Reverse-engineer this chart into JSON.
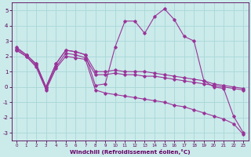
{
  "background_color": "#cbeaea",
  "line_color": "#993399",
  "grid_color": "#a8d8d8",
  "xlabel": "Windchill (Refroidissement éolien,°C)",
  "xlabel_color": "#660066",
  "tick_color": "#550055",
  "xlim": [
    -0.5,
    23.5
  ],
  "ylim": [
    -3.5,
    5.5
  ],
  "yticks": [
    -3,
    -2,
    -1,
    0,
    1,
    2,
    3,
    4,
    5
  ],
  "xticks": [
    0,
    1,
    2,
    3,
    4,
    5,
    6,
    7,
    8,
    9,
    10,
    11,
    12,
    13,
    14,
    15,
    16,
    17,
    18,
    19,
    20,
    21,
    22,
    23
  ],
  "series": [
    {
      "x": [
        0,
        1,
        2,
        3,
        4,
        5,
        6,
        7,
        8,
        9,
        10,
        11,
        12,
        13,
        14,
        15,
        16,
        17,
        18,
        19,
        20,
        21,
        22,
        23
      ],
      "y": [
        2.6,
        2.1,
        1.5,
        0.0,
        1.5,
        2.4,
        2.3,
        2.1,
        0.1,
        0.2,
        2.6,
        4.3,
        4.3,
        3.5,
        4.6,
        5.1,
        4.4,
        3.3,
        3.0,
        0.4,
        0.0,
        -0.1,
        -1.9,
        -3.0
      ]
    },
    {
      "x": [
        0,
        1,
        2,
        3,
        4,
        5,
        6,
        7,
        8,
        9,
        10,
        11,
        12,
        13,
        14,
        15,
        16,
        17,
        18,
        19,
        20,
        21,
        22,
        23
      ],
      "y": [
        2.5,
        2.1,
        1.5,
        0.0,
        1.5,
        2.4,
        2.3,
        2.1,
        1.0,
        1.0,
        1.1,
        1.0,
        1.0,
        1.0,
        0.9,
        0.8,
        0.7,
        0.6,
        0.5,
        0.4,
        0.2,
        0.1,
        0.0,
        -0.1
      ]
    },
    {
      "x": [
        0,
        1,
        2,
        3,
        4,
        5,
        6,
        7,
        8,
        9,
        10,
        11,
        12,
        13,
        14,
        15,
        16,
        17,
        18,
        19,
        20,
        21,
        22,
        23
      ],
      "y": [
        2.4,
        2.0,
        1.4,
        -0.1,
        1.3,
        2.2,
        2.1,
        1.9,
        0.8,
        0.8,
        0.9,
        0.8,
        0.8,
        0.7,
        0.7,
        0.6,
        0.5,
        0.4,
        0.3,
        0.2,
        0.1,
        0.0,
        -0.1,
        -0.2
      ]
    },
    {
      "x": [
        0,
        1,
        2,
        3,
        4,
        5,
        6,
        7,
        8,
        9,
        10,
        11,
        12,
        13,
        14,
        15,
        16,
        17,
        18,
        19,
        20,
        21,
        22,
        23
      ],
      "y": [
        2.4,
        2.0,
        1.3,
        -0.2,
        1.2,
        2.0,
        1.9,
        1.8,
        -0.2,
        -0.4,
        -0.5,
        -0.6,
        -0.7,
        -0.8,
        -0.9,
        -1.0,
        -1.2,
        -1.3,
        -1.5,
        -1.7,
        -1.9,
        -2.1,
        -2.4,
        -3.1
      ]
    }
  ]
}
